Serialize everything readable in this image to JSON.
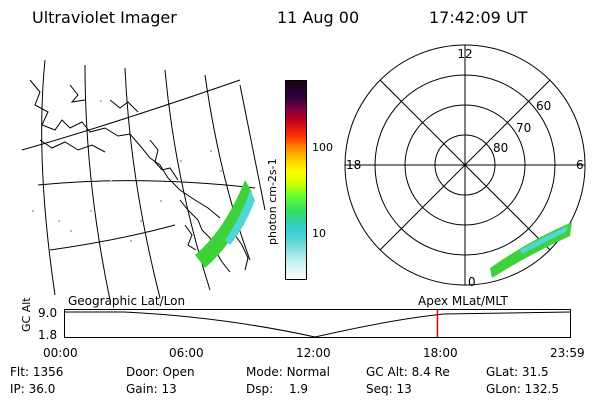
{
  "header": {
    "instrument": "Ultraviolet Imager",
    "date": "11 Aug 00",
    "time": "17:42:09 UT"
  },
  "colorbar": {
    "label": "photon cm-2s-1",
    "ticks": [
      "100",
      "10"
    ]
  },
  "polar_plot": {
    "mlt_labels": {
      "top": "12",
      "left": "18",
      "right": "6",
      "bottom": "0"
    },
    "lat_labels": [
      "60",
      "70",
      "80"
    ]
  },
  "projections": {
    "left": "Geographic Lat/Lon",
    "right": "Apex MLat/MLT"
  },
  "timeline": {
    "axis_label": "GC Alt",
    "y_ticks": [
      "9.0",
      "1.8"
    ],
    "x_ticks": [
      "00:00",
      "06:00",
      "12:00",
      "18:00",
      "23:59"
    ],
    "current_time_hours": 17.7
  },
  "meta": {
    "flt_label": "Flt:",
    "flt_value": "1356",
    "ip_label": "IP:",
    "ip_value": "36.0",
    "door_label": "Door:",
    "door_value": "Open",
    "gain_label": "Gain:",
    "gain_value": "13",
    "mode_label": "Mode:",
    "mode_value": "Normal",
    "dsp_label": "Dsp:",
    "dsp_value": "1.9",
    "gcalt_label": "GC Alt:",
    "gcalt_value": "8.4 Re",
    "seq_label": "Seq:",
    "seq_value": "13",
    "glat_label": "GLat:",
    "glat_value": "31.5",
    "glon_label": "GLon:",
    "glon_value": "132.5"
  },
  "colors": {
    "aurora_green": "#3fd13a",
    "aurora_cyan": "#4fd6d6",
    "marker_red": "#e00000"
  }
}
